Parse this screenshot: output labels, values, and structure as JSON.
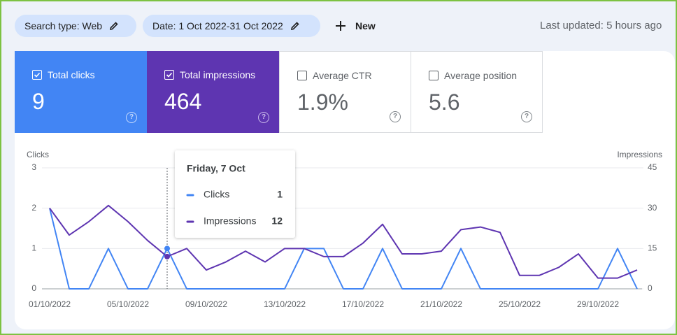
{
  "toolbar": {
    "search_type": "Search type: Web",
    "date": "Date: 1 Oct 2022-31 Oct 2022",
    "new": "New",
    "last_updated": "Last updated: 5 hours ago"
  },
  "metrics": [
    {
      "label": "Total clicks",
      "value": "9"
    },
    {
      "label": "Total impressions",
      "value": "464"
    },
    {
      "label": "Average CTR",
      "value": "1.9%"
    },
    {
      "label": "Average position",
      "value": "5.6"
    }
  ],
  "chart_data": {
    "type": "line",
    "categories": [
      "01/10/2022",
      null,
      null,
      null,
      "05/10/2022",
      null,
      null,
      null,
      "09/10/2022",
      null,
      null,
      null,
      "13/10/2022",
      null,
      null,
      null,
      "17/10/2022",
      null,
      null,
      null,
      "21/10/2022",
      null,
      null,
      null,
      "25/10/2022",
      null,
      null,
      null,
      "29/10/2022",
      null,
      null
    ],
    "ylabel": "Clicks",
    "y2label": "Impressions",
    "ylim": [
      0,
      3
    ],
    "yticks": [
      0,
      1,
      2,
      3
    ],
    "y2lim": [
      0,
      45
    ],
    "y2ticks": [
      0,
      15,
      30,
      45
    ],
    "grid": true,
    "series": [
      {
        "name": "Clicks",
        "color": "#4285f4",
        "values": [
          2,
          0,
          0,
          1,
          0,
          0,
          1,
          0,
          0,
          0,
          0,
          0,
          0,
          1,
          1,
          0,
          0,
          1,
          0,
          0,
          0,
          1,
          0,
          0,
          0,
          0,
          0,
          0,
          0,
          1,
          0
        ]
      },
      {
        "name": "Impressions",
        "color": "#5e35b1",
        "axis": "y2",
        "values": [
          30,
          20,
          25,
          31,
          25,
          18,
          12,
          15,
          7,
          10,
          14,
          10,
          15,
          15,
          12,
          12,
          17,
          24,
          13,
          13,
          14,
          22,
          23,
          21,
          5,
          5,
          8,
          13,
          4,
          4,
          7
        ]
      }
    ],
    "tooltip": {
      "title": "Friday, 7 Oct"
    }
  }
}
